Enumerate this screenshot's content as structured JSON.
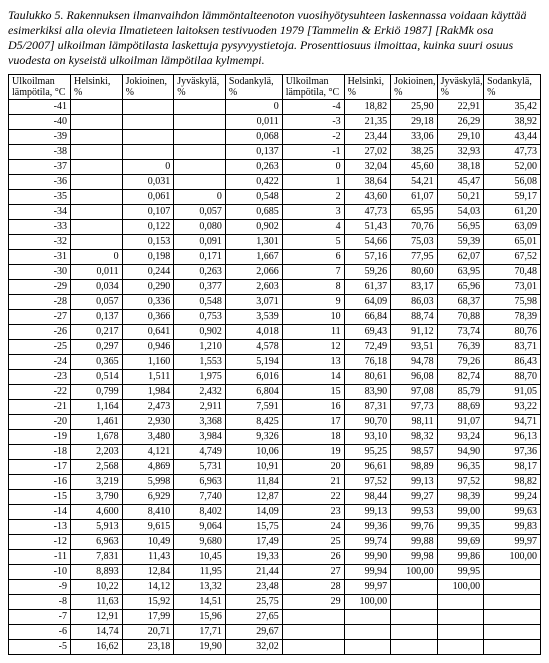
{
  "caption": "Taulukko 5.  Rakennuksen ilmanvaihdon lämmöntalteenoton vuosihyötysuhteen laskennassa voidaan käyttää esimerkiksi alla olevia Ilmatieteen laitoksen testivuoden 1979 [Tammelin & Erkiö 1987] [RakMk osa D5/2007] ulkoilman lämpötilasta laskettuja pysyvyystietoja. Prosenttiosuus ilmoittaa, kuinka suuri osuus vuodesta on kyseistä ulkoilman lämpötilaa kylmempi.",
  "headers": [
    "Ulkoilman lämpötila, °C",
    "Helsinki, %",
    "Jokioinen, %",
    "Jyväskylä, %",
    "Sodankylä, %",
    "Ulkoilman lämpötila, °C",
    "Helsinki, %",
    "Jokioinen, %",
    "Jyväskylä, %",
    "Sodankylä, %"
  ],
  "rows": [
    [
      "-41",
      "",
      "",
      "",
      "0",
      "-4",
      "18,82",
      "25,90",
      "22,91",
      "35,42"
    ],
    [
      "-40",
      "",
      "",
      "",
      "0,011",
      "-3",
      "21,35",
      "29,18",
      "26,29",
      "38,92"
    ],
    [
      "-39",
      "",
      "",
      "",
      "0,068",
      "-2",
      "23,44",
      "33,06",
      "29,10",
      "43,44"
    ],
    [
      "-38",
      "",
      "",
      "",
      "0,137",
      "-1",
      "27,02",
      "38,25",
      "32,93",
      "47,73"
    ],
    [
      "-37",
      "",
      "0",
      "",
      "0,263",
      "0",
      "32,04",
      "45,60",
      "38,18",
      "52,00"
    ],
    [
      "-36",
      "",
      "0,031",
      "",
      "0,422",
      "1",
      "38,64",
      "54,21",
      "45,47",
      "56,08"
    ],
    [
      "-35",
      "",
      "0,061",
      "0",
      "0,548",
      "2",
      "43,60",
      "61,07",
      "50,21",
      "59,17"
    ],
    [
      "-34",
      "",
      "0,107",
      "0,057",
      "0,685",
      "3",
      "47,73",
      "65,95",
      "54,03",
      "61,20"
    ],
    [
      "-33",
      "",
      "0,122",
      "0,080",
      "0,902",
      "4",
      "51,43",
      "70,76",
      "56,95",
      "63,09"
    ],
    [
      "-32",
      "",
      "0,153",
      "0,091",
      "1,301",
      "5",
      "54,66",
      "75,03",
      "59,39",
      "65,01"
    ],
    [
      "-31",
      "0",
      "0,198",
      "0,171",
      "1,667",
      "6",
      "57,16",
      "77,95",
      "62,07",
      "67,52"
    ],
    [
      "-30",
      "0,011",
      "0,244",
      "0,263",
      "2,066",
      "7",
      "59,26",
      "80,60",
      "63,95",
      "70,48"
    ],
    [
      "-29",
      "0,034",
      "0,290",
      "0,377",
      "2,603",
      "8",
      "61,37",
      "83,17",
      "65,96",
      "73,01"
    ],
    [
      "-28",
      "0,057",
      "0,336",
      "0,548",
      "3,071",
      "9",
      "64,09",
      "86,03",
      "68,37",
      "75,98"
    ],
    [
      "-27",
      "0,137",
      "0,366",
      "0,753",
      "3,539",
      "10",
      "66,84",
      "88,74",
      "70,88",
      "78,39"
    ],
    [
      "-26",
      "0,217",
      "0,641",
      "0,902",
      "4,018",
      "11",
      "69,43",
      "91,12",
      "73,74",
      "80,76"
    ],
    [
      "-25",
      "0,297",
      "0,946",
      "1,210",
      "4,578",
      "12",
      "72,49",
      "93,51",
      "76,39",
      "83,71"
    ],
    [
      "-24",
      "0,365",
      "1,160",
      "1,553",
      "5,194",
      "13",
      "76,18",
      "94,78",
      "79,26",
      "86,43"
    ],
    [
      "-23",
      "0,514",
      "1,511",
      "1,975",
      "6,016",
      "14",
      "80,61",
      "96,08",
      "82,74",
      "88,70"
    ],
    [
      "-22",
      "0,799",
      "1,984",
      "2,432",
      "6,804",
      "15",
      "83,90",
      "97,08",
      "85,79",
      "91,05"
    ],
    [
      "-21",
      "1,164",
      "2,473",
      "2,911",
      "7,591",
      "16",
      "87,31",
      "97,73",
      "88,69",
      "93,22"
    ],
    [
      "-20",
      "1,461",
      "2,930",
      "3,368",
      "8,425",
      "17",
      "90,70",
      "98,11",
      "91,07",
      "94,71"
    ],
    [
      "-19",
      "1,678",
      "3,480",
      "3,984",
      "9,326",
      "18",
      "93,10",
      "98,32",
      "93,24",
      "96,13"
    ],
    [
      "-18",
      "2,203",
      "4,121",
      "4,749",
      "10,06",
      "19",
      "95,25",
      "98,57",
      "94,90",
      "97,36"
    ],
    [
      "-17",
      "2,568",
      "4,869",
      "5,731",
      "10,91",
      "20",
      "96,61",
      "98,89",
      "96,35",
      "98,17"
    ],
    [
      "-16",
      "3,219",
      "5,998",
      "6,963",
      "11,84",
      "21",
      "97,52",
      "99,13",
      "97,52",
      "98,82"
    ],
    [
      "-15",
      "3,790",
      "6,929",
      "7,740",
      "12,87",
      "22",
      "98,44",
      "99,27",
      "98,39",
      "99,24"
    ],
    [
      "-14",
      "4,600",
      "8,410",
      "8,402",
      "14,09",
      "23",
      "99,13",
      "99,53",
      "99,00",
      "99,63"
    ],
    [
      "-13",
      "5,913",
      "9,615",
      "9,064",
      "15,75",
      "24",
      "99,36",
      "99,76",
      "99,35",
      "99,83"
    ],
    [
      "-12",
      "6,963",
      "10,49",
      "9,680",
      "17,49",
      "25",
      "99,74",
      "99,88",
      "99,69",
      "99,97"
    ],
    [
      "-11",
      "7,831",
      "11,43",
      "10,45",
      "19,33",
      "26",
      "99,90",
      "99,98",
      "99,86",
      "100,00"
    ],
    [
      "-10",
      "8,893",
      "12,84",
      "11,95",
      "21,44",
      "27",
      "99,94",
      "100,00",
      "99,95",
      ""
    ],
    [
      "-9",
      "10,22",
      "14,12",
      "13,32",
      "23,48",
      "28",
      "99,97",
      "",
      "100,00",
      ""
    ],
    [
      "-8",
      "11,63",
      "15,92",
      "14,51",
      "25,75",
      "29",
      "100,00",
      "",
      "",
      ""
    ],
    [
      "-7",
      "12,91",
      "17,99",
      "15,96",
      "27,65",
      "",
      "",
      "",
      "",
      ""
    ],
    [
      "-6",
      "14,74",
      "20,71",
      "17,71",
      "29,67",
      "",
      "",
      "",
      "",
      ""
    ],
    [
      "-5",
      "16,62",
      "23,18",
      "19,90",
      "32,02",
      "",
      "",
      "",
      "",
      ""
    ]
  ]
}
